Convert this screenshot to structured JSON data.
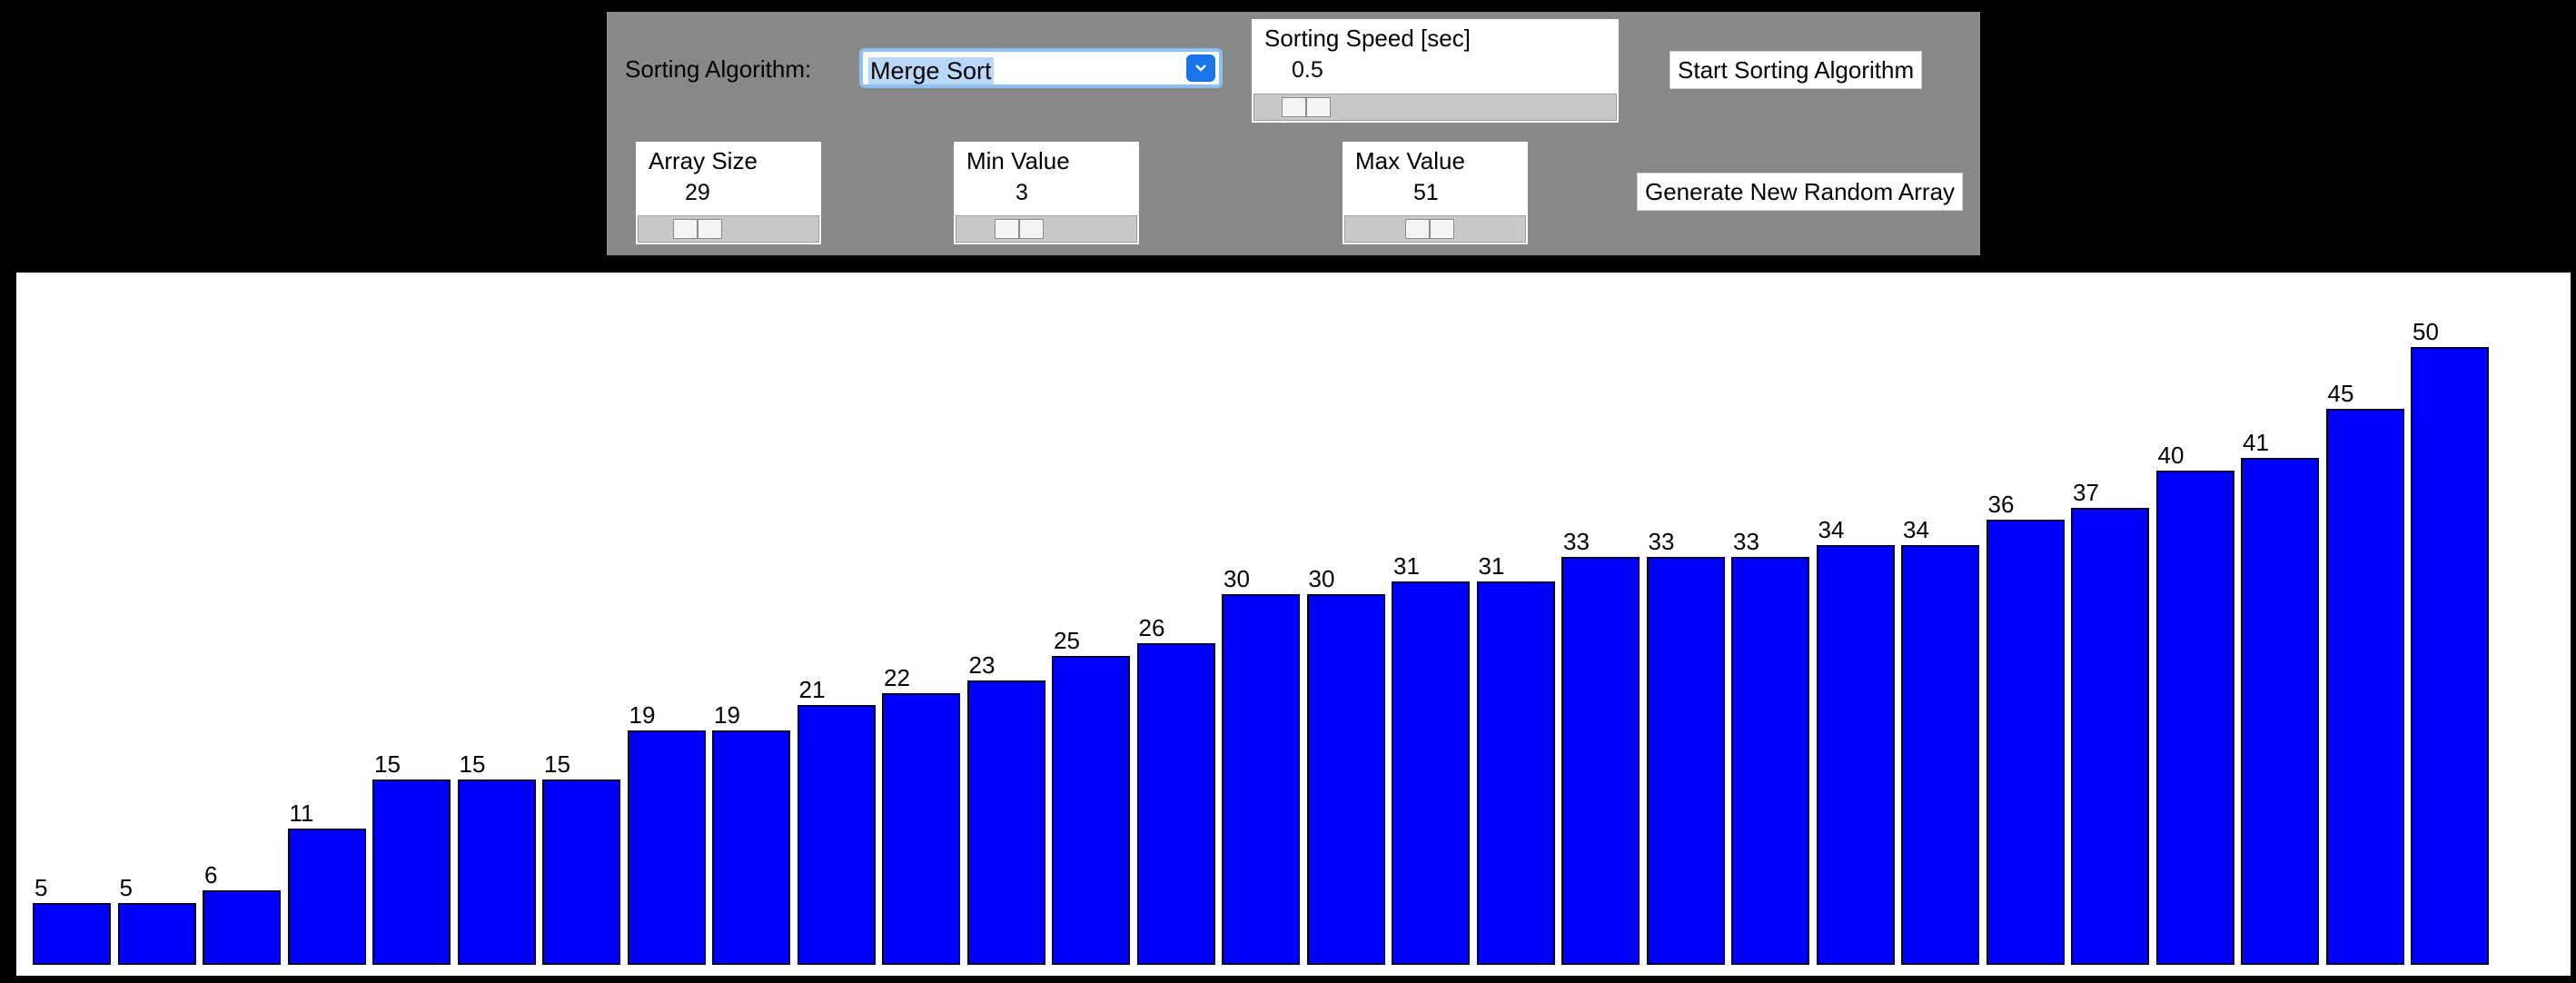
{
  "controls": {
    "algorithm_label": "Sorting Algorithm:",
    "algorithm_selected": "Merge Sort",
    "speed": {
      "title": "Sorting Speed [sec]",
      "value": "0.5"
    },
    "start_button": "Start Sorting Algorithm",
    "array_size": {
      "title": "Array Size",
      "value": "29"
    },
    "min_value": {
      "title": "Min Value",
      "value": "3"
    },
    "max_value": {
      "title": "Max Value",
      "value": "51"
    },
    "generate_button": "Generate New Random Array"
  },
  "colors": {
    "bar_fill": "#0000ff",
    "control_background": "#888888",
    "page_background": "#000000",
    "chart_background": "#ffffff"
  },
  "chart_data": {
    "type": "bar",
    "values": [
      5,
      5,
      6,
      11,
      15,
      15,
      15,
      19,
      19,
      21,
      22,
      23,
      25,
      26,
      30,
      30,
      31,
      31,
      33,
      33,
      33,
      34,
      34,
      36,
      37,
      40,
      41,
      45,
      50
    ],
    "ylim": [
      0,
      51
    ],
    "grid": false,
    "legend": "none"
  }
}
